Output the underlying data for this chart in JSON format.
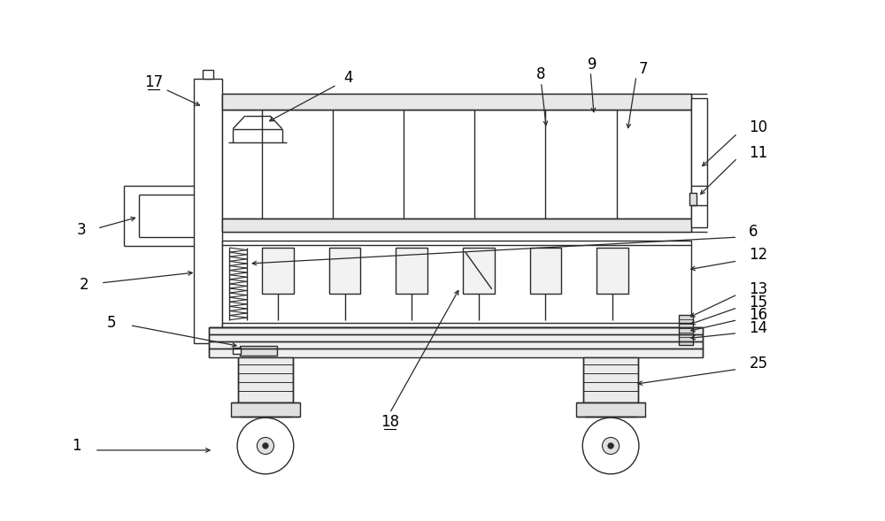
{
  "bg_color": "#ffffff",
  "line_color": "#2a2a2a",
  "lw": 1.0,
  "fig_width": 10.0,
  "fig_height": 5.89
}
